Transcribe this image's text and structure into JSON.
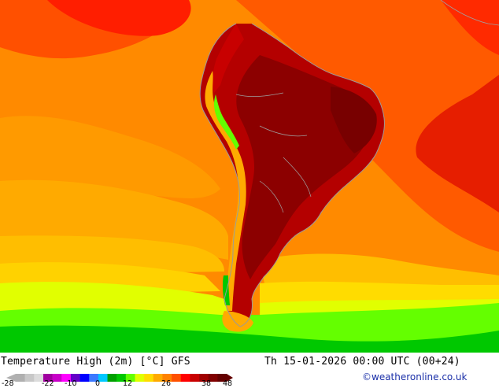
{
  "map": {
    "title": "Temperature High (2m) [°C] GFS",
    "valid_time": "Th 15-01-2026 00:00 UTC (00+24)",
    "credit": "©weatheronline.co.uk",
    "region": "South America",
    "legend": {
      "tick_labels": [
        "-28",
        "-22",
        "-10",
        "0",
        "12",
        "26",
        "38",
        "48"
      ],
      "colors": [
        "#b0b0b0",
        "#c8c8c8",
        "#dcdcdc",
        "#a000a0",
        "#c800c8",
        "#ff00ff",
        "#6400c8",
        "#0000ff",
        "#3c78ff",
        "#00c8ff",
        "#00a000",
        "#00c800",
        "#64ff00",
        "#e1ff00",
        "#ffdc00",
        "#ffaa00",
        "#ff8200",
        "#ff5000",
        "#ff0000",
        "#c80000",
        "#a00000",
        "#800000",
        "#640000"
      ]
    }
  }
}
